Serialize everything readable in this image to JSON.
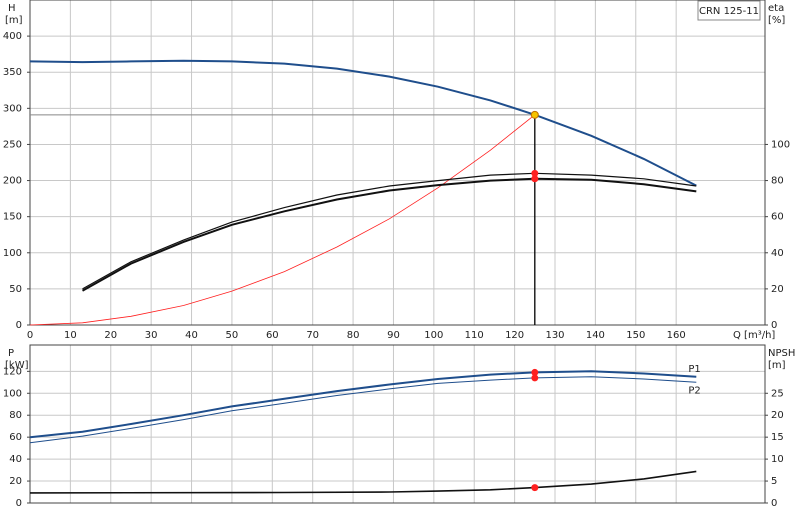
{
  "chart_data": [
    {
      "type": "line",
      "title": "CRN 125-11",
      "y_label": "H",
      "y_unit": "[m]",
      "y2_label": "eta",
      "y2_unit": "[%]",
      "x_label": "Q [m³/h]",
      "xlim": [
        0,
        182
      ],
      "xticks": [
        0,
        10,
        20,
        30,
        40,
        50,
        60,
        70,
        80,
        90,
        100,
        110,
        120,
        130,
        140,
        150,
        160
      ],
      "ylim": [
        0,
        450
      ],
      "yticks": [
        0,
        50,
        100,
        150,
        200,
        250,
        300,
        350,
        400
      ],
      "y2lim": [
        0,
        180
      ],
      "y2ticks": [
        0,
        20,
        40,
        60,
        80,
        100
      ],
      "grid": true,
      "operating_point": 125,
      "series": [
        {
          "color": "#1f4e8c",
          "width": 2,
          "marker_color": "#f5c400",
          "x": [
            0,
            13,
            25,
            38,
            50,
            63,
            76,
            89,
            101,
            114,
            125,
            139,
            152,
            165
          ],
          "values": [
            365,
            364,
            365,
            366,
            365,
            362,
            355,
            344,
            330,
            311,
            291,
            262,
            230,
            193
          ]
        },
        {
          "color": "#ff2020",
          "width": 0.8,
          "x": [
            0,
            13,
            25,
            38,
            50,
            63,
            76,
            89,
            101,
            114,
            125
          ],
          "values": [
            0,
            3,
            12,
            27,
            47,
            74,
            108,
            147,
            190,
            242,
            291
          ]
        },
        {
          "color": "#111111",
          "width": 1.2,
          "axis": "y2",
          "marker_color": "#ff2020",
          "x": [
            13,
            25,
            38,
            50,
            63,
            76,
            89,
            101,
            114,
            125,
            139,
            152,
            165
          ],
          "values": [
            20,
            35,
            47,
            57,
            65,
            72,
            77,
            80,
            83,
            84,
            83,
            81,
            77
          ]
        },
        {
          "color": "#111111",
          "width": 2,
          "axis": "y2",
          "marker_color": "#ff2020",
          "x": [
            13,
            25,
            38,
            50,
            63,
            76,
            89,
            101,
            114,
            125,
            139,
            152,
            165
          ],
          "values": [
            19,
            34,
            46,
            55.5,
            63,
            69.5,
            74.5,
            77.5,
            80,
            81,
            80.5,
            78,
            74
          ]
        }
      ]
    },
    {
      "type": "line",
      "y_label": "P",
      "y_unit": "[kW]",
      "y2_label": "NPSH",
      "y2_unit": "[m]",
      "xlim": [
        0,
        182
      ],
      "ylim": [
        0,
        144
      ],
      "yticks": [
        0,
        20,
        40,
        60,
        80,
        100,
        120
      ],
      "y2lim": [
        0,
        36
      ],
      "y2ticks": [
        0,
        5,
        10,
        15,
        20,
        25
      ],
      "grid": true,
      "operating_point": 125,
      "series": [
        {
          "name": "P1",
          "color": "#1f4e8c",
          "width": 2,
          "marker_color": "#ff2020",
          "x": [
            0,
            13,
            25,
            38,
            50,
            63,
            76,
            89,
            101,
            114,
            125,
            139,
            152,
            165
          ],
          "values": [
            60,
            65,
            72,
            80,
            88,
            95,
            102,
            108,
            113,
            117,
            119,
            120,
            118,
            115
          ]
        },
        {
          "name": "P2",
          "color": "#1f4e8c",
          "width": 1,
          "marker_color": "#ff2020",
          "x": [
            0,
            13,
            25,
            38,
            50,
            63,
            76,
            89,
            101,
            114,
            125,
            139,
            152,
            165
          ],
          "values": [
            55,
            61,
            68,
            76,
            84,
            91,
            98,
            104,
            109,
            112,
            114,
            115,
            113,
            110
          ]
        },
        {
          "color": "#111111",
          "width": 1.6,
          "axis": "y2",
          "marker_color": "#ff2020",
          "x": [
            0,
            63,
            89,
            101,
            114,
            125,
            139,
            152,
            165
          ],
          "values": [
            2.3,
            2.4,
            2.5,
            2.7,
            3,
            3.5,
            4.3,
            5.5,
            7.2
          ]
        }
      ]
    }
  ]
}
